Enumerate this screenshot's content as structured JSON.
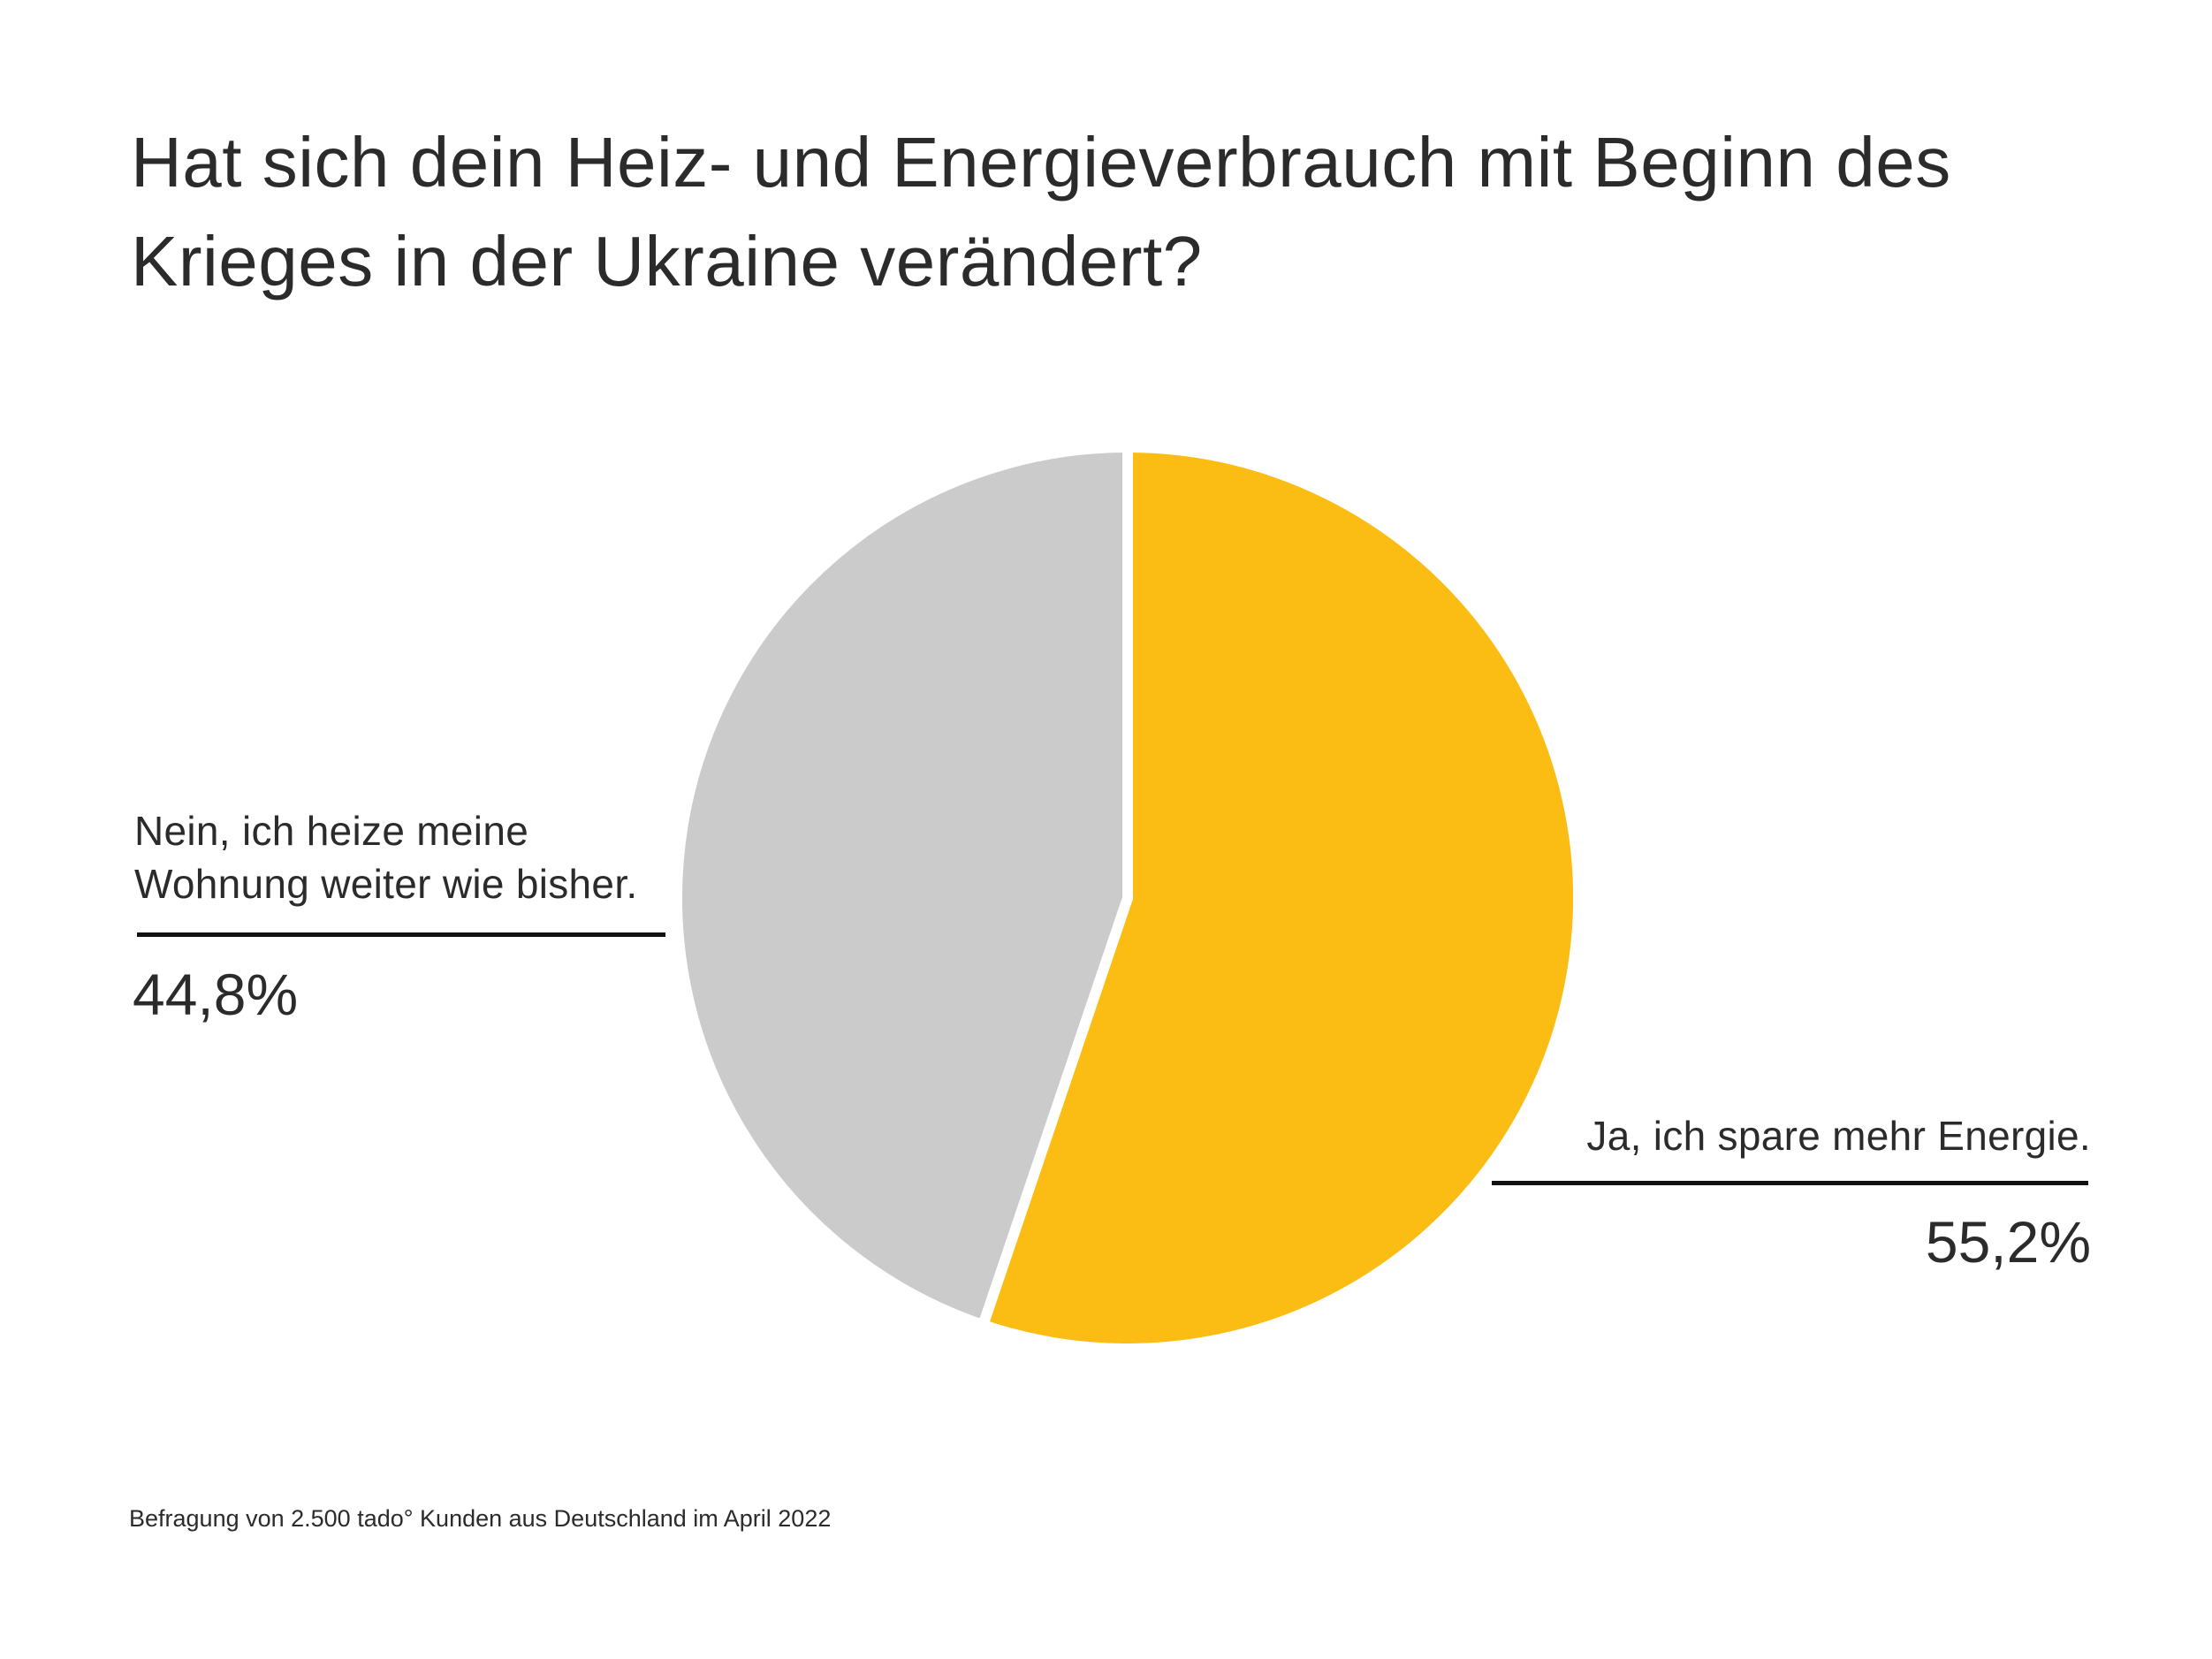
{
  "colors": {
    "yes": "#fbbd13",
    "no": "#cbcbcb",
    "separator": "#ffffff",
    "text": "#2b2b2b",
    "leader": "#111111"
  },
  "chart_data": {
    "type": "pie",
    "title": "Hat sich dein Heiz- und Energieverbrauch mit Beginn des Krieges in der Ukraine verändert?",
    "slices": [
      {
        "label": "Ja, ich spare mehr Energie.",
        "value": 55.2,
        "display": "55,2%",
        "color": "#fbbd13"
      },
      {
        "label": "Nein, ich heize meine Wohnung weiter wie bisher.",
        "value": 44.8,
        "display": "44,8%",
        "color": "#cbcbcb"
      }
    ],
    "start_angle": "12 o'clock",
    "direction": "clockwise",
    "legend": "none"
  },
  "labels": {
    "no_line1": "Nein, ich heize meine",
    "no_line2": "Wohnung weiter wie bisher."
  },
  "footnote": "Befragung von 2.500 tado° Kunden aus Deutschland im April 2022"
}
